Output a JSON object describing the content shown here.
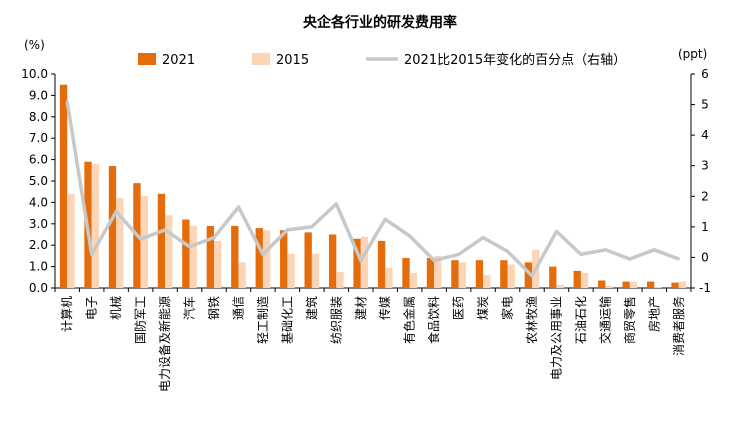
{
  "chart_data": {
    "type": "bar",
    "title": "央企各行业的研发费用率",
    "ylabel_left": "(%)",
    "ylabel_right": "(ppt)",
    "ylim_left": [
      0,
      10
    ],
    "yticks_left": [
      "0.0",
      "1.0",
      "2.0",
      "3.0",
      "4.0",
      "5.0",
      "6.0",
      "7.0",
      "8.0",
      "9.0",
      "10.0"
    ],
    "ylim_right": [
      -1,
      6
    ],
    "yticks_right": [
      "-1",
      "0",
      "1",
      "2",
      "3",
      "4",
      "5",
      "6"
    ],
    "grid": false,
    "legend_position": "top",
    "categories": [
      "计算机",
      "电子",
      "机械",
      "国防军工",
      "电力设备及新能源",
      "汽车",
      "钢铁",
      "通信",
      "轻工制造",
      "基础化工",
      "建筑",
      "纺织服装",
      "建材",
      "传媒",
      "有色金属",
      "食品饮料",
      "医药",
      "煤炭",
      "家电",
      "农林牧渔",
      "电力及公用事业",
      "石油石化",
      "交通运输",
      "商贸零售",
      "房地产",
      "消费者服务"
    ],
    "series": [
      {
        "name": "2021",
        "type": "bar",
        "axis": "left",
        "color": "#E46C0A",
        "values": [
          9.5,
          5.9,
          5.7,
          4.9,
          4.4,
          3.2,
          2.9,
          2.9,
          2.8,
          2.7,
          2.6,
          2.5,
          2.3,
          2.2,
          1.4,
          1.4,
          1.3,
          1.3,
          1.3,
          1.2,
          1.0,
          0.8,
          0.35,
          0.3,
          0.3,
          0.25
        ]
      },
      {
        "name": "2015",
        "type": "bar",
        "axis": "left",
        "color": "#FBD5B5",
        "values": [
          4.4,
          5.8,
          4.2,
          4.3,
          3.4,
          2.9,
          2.2,
          1.2,
          2.7,
          1.6,
          1.6,
          0.75,
          2.4,
          0.95,
          0.7,
          1.5,
          1.2,
          0.6,
          1.1,
          1.8,
          0.15,
          0.7,
          0.1,
          0.3,
          0.05,
          0.3
        ]
      },
      {
        "name": "2021比2015年变化的百分点（右轴）",
        "type": "line",
        "axis": "right",
        "color": "#C8C8C8",
        "values": [
          5.1,
          0.1,
          1.5,
          0.6,
          0.9,
          0.35,
          0.65,
          1.65,
          0.1,
          0.9,
          1.0,
          1.75,
          -0.1,
          1.25,
          0.7,
          -0.1,
          0.1,
          0.65,
          0.2,
          -0.6,
          0.85,
          0.1,
          0.25,
          -0.05,
          0.25,
          -0.05
        ]
      }
    ]
  }
}
